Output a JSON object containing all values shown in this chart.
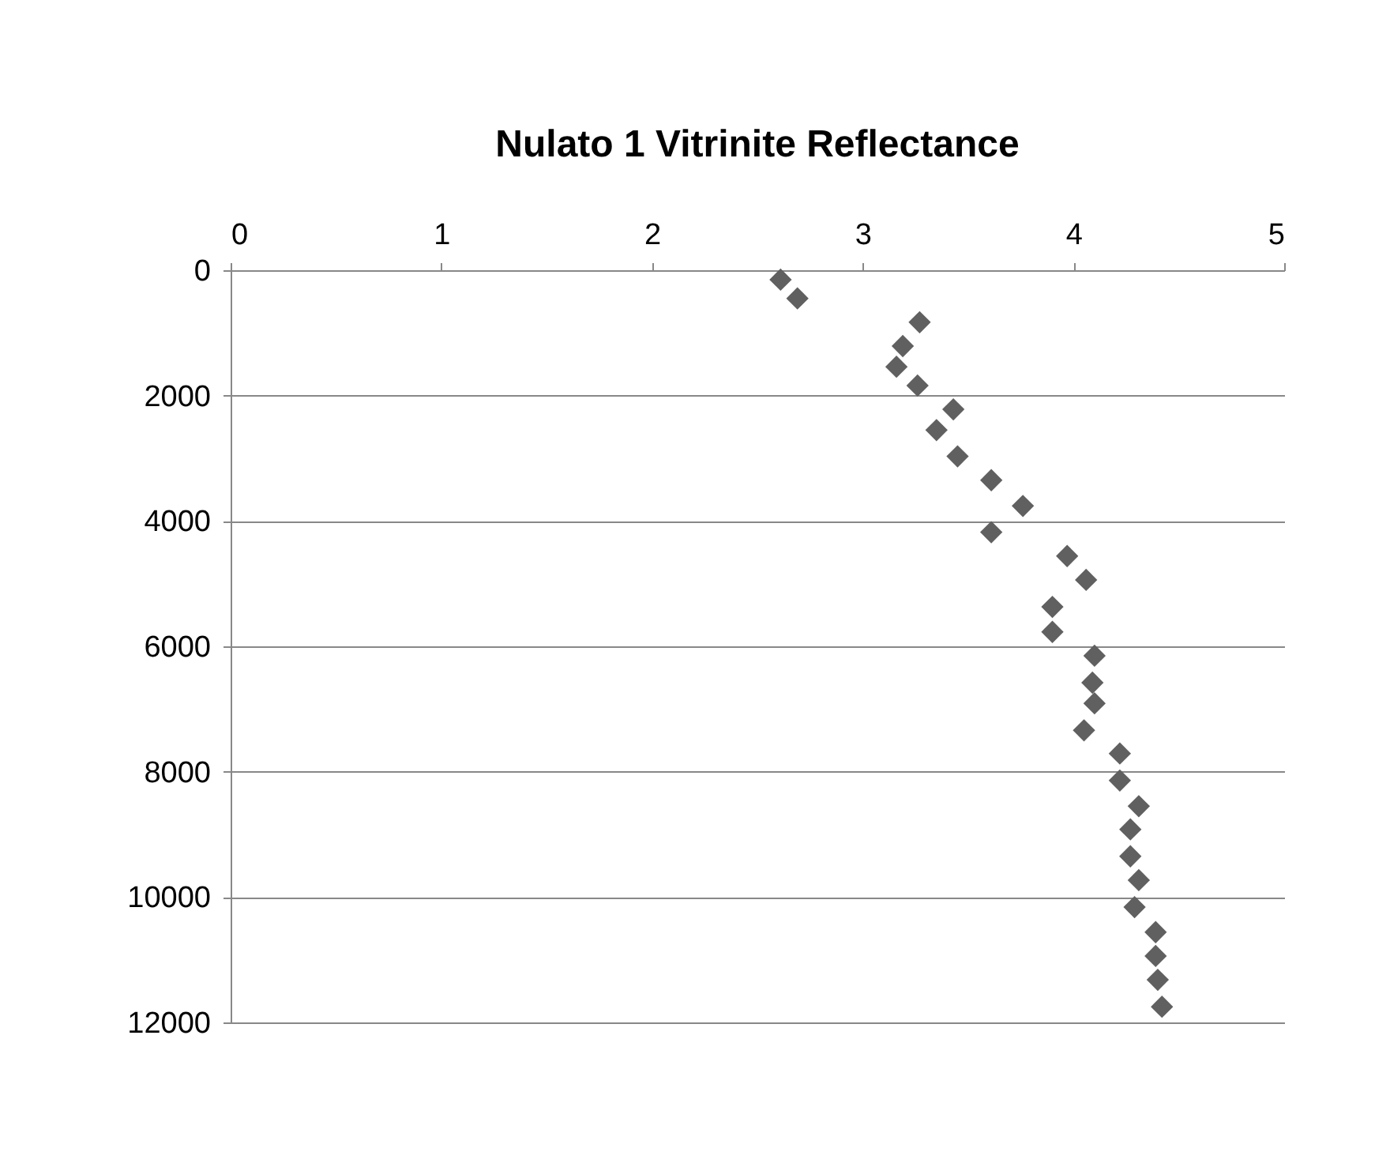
{
  "chart_data": {
    "type": "scatter",
    "title": "Nulato 1 Vitrinite Reflectance",
    "x": [
      2.61,
      2.69,
      3.27,
      3.19,
      3.16,
      3.26,
      3.43,
      3.35,
      3.45,
      3.61,
      3.76,
      3.61,
      3.97,
      4.06,
      3.9,
      3.9,
      4.1,
      4.09,
      4.1,
      4.05,
      4.22,
      4.22,
      4.31,
      4.27,
      4.27,
      4.31,
      4.29,
      4.39,
      4.39,
      4.4,
      4.42
    ],
    "series": [
      {
        "color": "#606060",
        "values": [
          150,
          450,
          830,
          1210,
          1540,
          1840,
          2220,
          2550,
          2970,
          3350,
          3760,
          4180,
          4560,
          4940,
          5370,
          5770,
          6150,
          6580,
          6910,
          7340,
          7710,
          8140,
          8550,
          8920,
          9350,
          9730,
          10160,
          10560,
          10940,
          11320,
          11750
        ]
      }
    ],
    "xlim": [
      0,
      5
    ],
    "xticks": [
      0,
      1,
      2,
      3,
      4,
      5
    ],
    "ylim": [
      12000,
      0
    ],
    "yticks": [
      0,
      2000,
      4000,
      6000,
      8000,
      10000,
      12000
    ],
    "grid": "y",
    "marker": "diamond",
    "legend": false
  }
}
